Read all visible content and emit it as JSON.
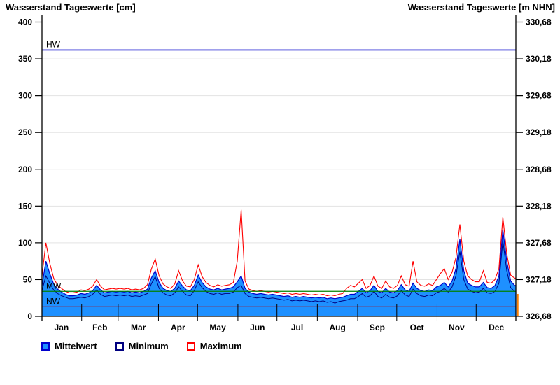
{
  "chart_data": {
    "type": "line",
    "titles": {
      "left": "Wasserstand Tageswerte [cm]",
      "right": "Wasserstand Tageswerte [m NHN]"
    },
    "x_axis": {
      "tick_labels": [
        "Jan",
        "Feb",
        "Mar",
        "Apr",
        "May",
        "Jun",
        "Jul",
        "Aug",
        "Sep",
        "Oct",
        "Nov",
        "Dec"
      ],
      "month_end_days": [
        31,
        59,
        90,
        120,
        151,
        181,
        212,
        243,
        273,
        304,
        334
      ],
      "days_in_year": 365
    },
    "y_axis_left": {
      "unit": "cm",
      "min": 0,
      "max": 400,
      "ticks": [
        400,
        350,
        300,
        250,
        200,
        150,
        100,
        50,
        0
      ]
    },
    "y_axis_right": {
      "unit": "m NHN",
      "tick_labels": [
        "330,68",
        "330,18",
        "329,68",
        "329,18",
        "328,68",
        "328,18",
        "327,68",
        "327,18",
        "326,68"
      ]
    },
    "reference_lines": [
      {
        "label": "HW",
        "value_cm": 362,
        "color": "#0000CC"
      },
      {
        "label": "MW",
        "value_cm": 34,
        "color": "#008000"
      },
      {
        "label": "NW",
        "value_cm": 13,
        "color": "#C00000"
      }
    ],
    "grid_color": "#E3E3E3",
    "axis_color": "#000000",
    "edge_marker_color": "#FF8000",
    "days": [
      1,
      4,
      7,
      10,
      13,
      16,
      19,
      22,
      25,
      28,
      31,
      34,
      37,
      40,
      43,
      46,
      49,
      52,
      55,
      58,
      61,
      64,
      67,
      70,
      73,
      76,
      79,
      82,
      85,
      88,
      91,
      94,
      97,
      100,
      103,
      106,
      109,
      112,
      115,
      118,
      121,
      124,
      127,
      130,
      133,
      136,
      139,
      142,
      145,
      148,
      151,
      154,
      157,
      160,
      163,
      166,
      169,
      172,
      175,
      178,
      181,
      184,
      187,
      190,
      193,
      196,
      199,
      202,
      205,
      208,
      211,
      214,
      217,
      220,
      223,
      226,
      229,
      232,
      235,
      238,
      241,
      244,
      247,
      250,
      253,
      256,
      259,
      262,
      265,
      268,
      271,
      274,
      277,
      280,
      283,
      286,
      289,
      292,
      295,
      298,
      301,
      304,
      307,
      310,
      313,
      316,
      319,
      322,
      325,
      328,
      331,
      334,
      337,
      340,
      343,
      346,
      349,
      352,
      355,
      358,
      361,
      364
    ],
    "series": [
      {
        "name": "Mittelwert",
        "style": "area",
        "fill": "#1E90FF",
        "line_color": "#0000CD",
        "values": [
          42,
          75,
          58,
          44,
          37,
          33,
          30,
          28,
          28,
          29,
          31,
          30,
          32,
          35,
          42,
          36,
          32,
          33,
          34,
          33,
          34,
          33,
          34,
          32,
          33,
          32,
          34,
          37,
          52,
          62,
          46,
          38,
          35,
          34,
          38,
          48,
          41,
          36,
          35,
          42,
          56,
          46,
          40,
          37,
          36,
          38,
          36,
          37,
          38,
          40,
          47,
          55,
          38,
          33,
          31,
          30,
          31,
          30,
          29,
          30,
          29,
          28,
          27,
          28,
          26,
          27,
          26,
          27,
          26,
          25,
          26,
          25,
          26,
          24,
          25,
          24,
          25,
          26,
          28,
          30,
          30,
          34,
          38,
          32,
          35,
          42,
          34,
          32,
          38,
          33,
          32,
          35,
          43,
          36,
          34,
          45,
          38,
          35,
          34,
          36,
          35,
          40,
          42,
          46,
          40,
          48,
          65,
          105,
          62,
          45,
          42,
          40,
          40,
          46,
          39,
          38,
          42,
          55,
          118,
          75,
          48,
          42
        ]
      },
      {
        "name": "Minimum",
        "style": "line",
        "fill": "#FFFFFF",
        "line_color": "#000080",
        "values": [
          35,
          55,
          45,
          36,
          31,
          28,
          26,
          24,
          24,
          25,
          26,
          25,
          27,
          30,
          36,
          30,
          27,
          28,
          29,
          28,
          29,
          28,
          29,
          27,
          28,
          27,
          29,
          31,
          44,
          54,
          38,
          32,
          29,
          28,
          32,
          40,
          34,
          29,
          28,
          35,
          47,
          39,
          34,
          31,
          30,
          32,
          30,
          31,
          31,
          33,
          39,
          42,
          31,
          27,
          26,
          25,
          26,
          25,
          24,
          25,
          24,
          23,
          22,
          23,
          21,
          22,
          21,
          22,
          21,
          20,
          21,
          20,
          21,
          19,
          20,
          18,
          20,
          21,
          22,
          24,
          24,
          27,
          31,
          26,
          28,
          34,
          27,
          25,
          30,
          26,
          25,
          28,
          35,
          29,
          27,
          37,
          31,
          28,
          27,
          29,
          28,
          32,
          34,
          38,
          33,
          40,
          55,
          88,
          50,
          37,
          34,
          32,
          33,
          38,
          32,
          31,
          34,
          45,
          103,
          62,
          39,
          34
        ]
      },
      {
        "name": "Maximum",
        "style": "line",
        "fill": "#FFFFFF",
        "line_color": "#FF0000",
        "values": [
          55,
          100,
          72,
          52,
          42,
          38,
          34,
          32,
          32,
          33,
          36,
          35,
          37,
          41,
          50,
          41,
          36,
          37,
          38,
          37,
          38,
          37,
          38,
          36,
          37,
          36,
          38,
          43,
          64,
          78,
          55,
          44,
          40,
          38,
          44,
          62,
          48,
          41,
          40,
          50,
          70,
          54,
          46,
          42,
          40,
          43,
          41,
          42,
          43,
          46,
          75,
          145,
          48,
          37,
          35,
          34,
          35,
          34,
          33,
          34,
          33,
          32,
          31,
          32,
          30,
          31,
          30,
          31,
          30,
          29,
          30,
          29,
          30,
          28,
          29,
          28,
          30,
          31,
          38,
          42,
          40,
          45,
          50,
          38,
          42,
          55,
          41,
          38,
          48,
          40,
          38,
          42,
          55,
          43,
          41,
          75,
          47,
          42,
          41,
          44,
          42,
          50,
          58,
          65,
          50,
          60,
          80,
          125,
          75,
          55,
          50,
          47,
          47,
          62,
          46,
          45,
          50,
          65,
          135,
          85,
          56,
          52
        ]
      }
    ]
  }
}
